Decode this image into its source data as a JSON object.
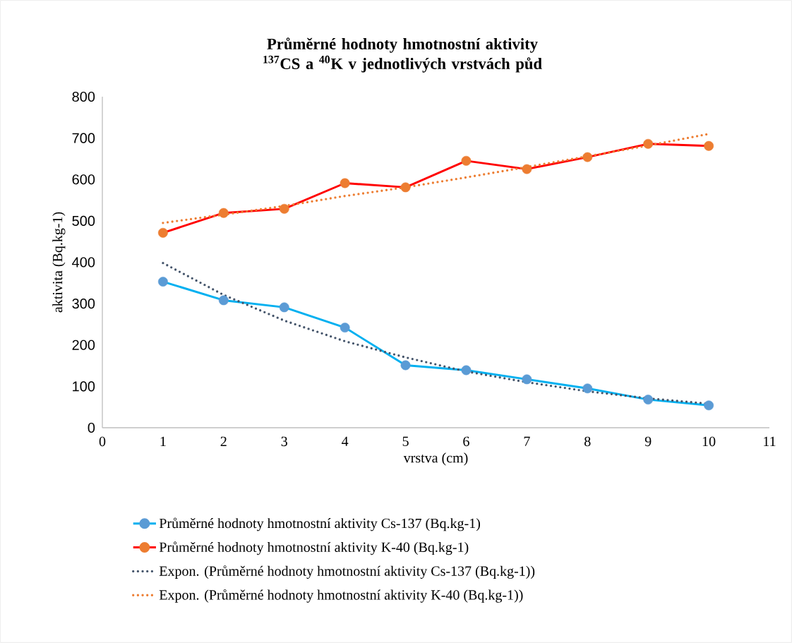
{
  "chart_data": {
    "type": "line",
    "title": "Průměrné hodnoty  hmotnostní aktivity $^{137}$CS a $^{40}$K v jednotlivých vrstvách půd",
    "xlabel": "vrstva (cm)",
    "ylabel": "aktivita (Bq.kg-1)",
    "x": [
      1,
      2,
      3,
      4,
      5,
      6,
      7,
      8,
      9,
      10
    ],
    "series": [
      {
        "name": "Průměrné hodnoty hmotnostní aktivity Cs-137 (Bq.kg-1)",
        "color": "#00b0f0",
        "colors": [
          "#5b9bd5",
          "#5b9bd5",
          "#5b9bd5",
          "#5b9bd5",
          "#5b9bd5",
          "#5b9bd5",
          "#5b9bd5",
          "#5b9bd5",
          "#5b9bd5",
          "#5b9bd5"
        ],
        "marker": "circle",
        "line_style": "solid",
        "values": [
          353,
          308,
          291,
          242,
          151,
          139,
          117,
          95,
          68,
          54
        ]
      },
      {
        "name": "Průměrné hodnoty hmotnostní aktivity K-40 (Bq.kg-1)",
        "color": "#ff0000",
        "colors": [
          "#ed7d31",
          "#ed7d31",
          "#ed7d31",
          "#ed7d31",
          "#ed7d31",
          "#ed7d31",
          "#ed7d31",
          "#ed7d31",
          "#ed7d31",
          "#ed7d31"
        ],
        "marker": "circle",
        "line_style": "solid",
        "values": [
          471,
          519,
          529,
          591,
          581,
          645,
          625,
          654,
          686,
          681
        ]
      },
      {
        "name": "Expon. (Průměrné hodnoty hmotnostní aktivity Cs-137 (Bq.kg-1))",
        "type": "line",
        "color": "#44546a",
        "marker": "none",
        "line_style": "dotted",
        "x": [
          1,
          2,
          3,
          4,
          5,
          6,
          7,
          8,
          9,
          10
        ],
        "values": [
          398,
          321,
          259,
          209,
          170,
          136,
          110,
          88,
          71,
          58
        ]
      },
      {
        "name": "Expon. (Průměrné hodnoty hmotnostní aktivity K-40 (Bq.kg-1))",
        "type": "line",
        "color": "#ed7d31",
        "marker": "none",
        "line_style": "dotted",
        "x": [
          1,
          2,
          3,
          4,
          5,
          6,
          7,
          8,
          9,
          10
        ],
        "values": [
          495,
          515,
          536,
          560,
          581,
          605,
          630,
          656,
          682,
          710
        ]
      }
    ],
    "xlim": [
      0,
      11
    ],
    "xticks": [
      0,
      1,
      2,
      3,
      4,
      5,
      6,
      7,
      8,
      9,
      10,
      11
    ],
    "ylim": [
      0,
      800
    ],
    "yticks": [
      0,
      100,
      200,
      300,
      400,
      500,
      600,
      700,
      800
    ],
    "grid": false,
    "legend": "bottom"
  }
}
